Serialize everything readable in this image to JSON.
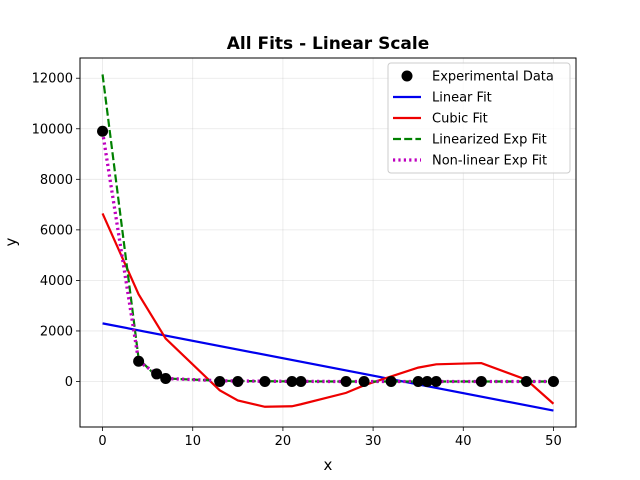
{
  "chart_data": {
    "type": "line",
    "title": "All Fits - Linear Scale",
    "xlabel": "x",
    "ylabel": "y",
    "xlim": [
      -2.5,
      52.5
    ],
    "ylim": [
      -1800,
      12800
    ],
    "xticks": [
      0,
      10,
      20,
      30,
      40,
      50
    ],
    "yticks": [
      0,
      2000,
      4000,
      6000,
      8000,
      10000,
      12000
    ],
    "grid": true,
    "legend_position": "top-right",
    "colors": {
      "experimental": "#000000",
      "linear": "#0000ee",
      "cubic": "#ee0000",
      "lin_exp": "#008000",
      "nonlin_exp": "#bf00bf"
    },
    "scatter": {
      "name": "Experimental Data",
      "x": [
        0,
        4,
        6,
        7,
        13,
        15,
        18,
        21,
        22,
        27,
        29,
        32,
        35,
        36,
        37,
        42,
        47,
        50
      ],
      "y": [
        9900,
        800,
        300,
        120,
        0,
        0,
        0,
        0,
        0,
        0,
        0,
        0,
        0,
        0,
        0,
        0,
        0,
        0
      ]
    },
    "series": [
      {
        "name": "Linear Fit",
        "style": "solid",
        "x": [
          0,
          50
        ],
        "y": [
          2300,
          -1150
        ]
      },
      {
        "name": "Cubic Fit",
        "style": "solid",
        "x": [
          0,
          4,
          7,
          13,
          15,
          18,
          21,
          22,
          27,
          29,
          32,
          35,
          37,
          42,
          47,
          50
        ],
        "y": [
          6650,
          3450,
          1700,
          -350,
          -750,
          -1000,
          -980,
          -900,
          -450,
          -150,
          200,
          550,
          680,
          730,
          70,
          -880
        ]
      },
      {
        "name": "Linearized Exp Fit",
        "style": "dashed",
        "x": [
          0,
          4,
          6,
          7,
          13,
          15,
          18,
          21,
          22,
          27,
          29,
          32,
          35,
          36,
          37,
          42,
          47,
          50
        ],
        "y": [
          12150,
          900,
          200,
          120,
          30,
          20,
          10,
          5,
          5,
          0,
          0,
          0,
          0,
          0,
          0,
          0,
          0,
          0
        ]
      },
      {
        "name": "Non-linear Exp Fit",
        "style": "dotted",
        "x": [
          0,
          4,
          6,
          7,
          13,
          15,
          18,
          21,
          22,
          27,
          29,
          32,
          35,
          36,
          37,
          42,
          47,
          50
        ],
        "y": [
          9880,
          800,
          300,
          120,
          30,
          20,
          10,
          5,
          5,
          0,
          0,
          0,
          0,
          0,
          0,
          0,
          0,
          0
        ]
      }
    ]
  }
}
